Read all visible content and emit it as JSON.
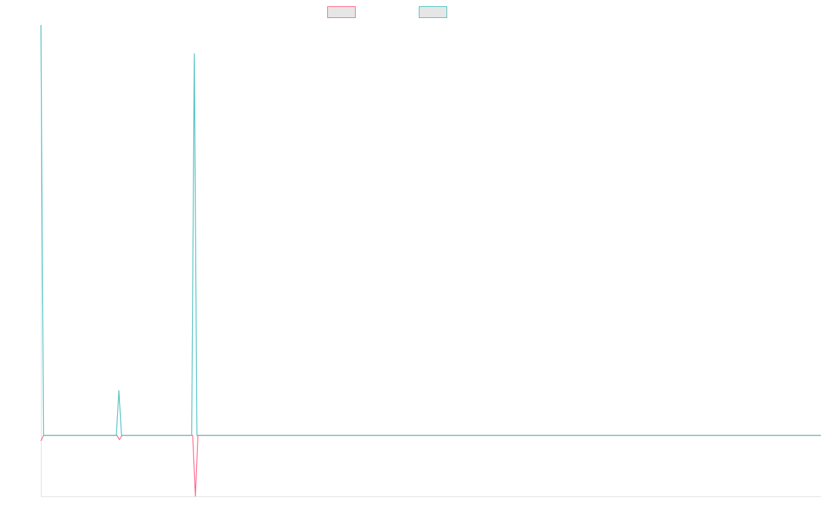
{
  "chart_data": {
    "type": "line",
    "ylim": [
      -88,
      592
    ],
    "series": [
      {
        "color": "#ff6384",
        "values": [
          -8,
          0,
          0,
          0,
          0,
          0,
          0,
          0,
          0,
          0,
          0,
          0,
          0,
          0,
          0,
          0,
          0,
          0,
          0,
          0,
          0,
          0,
          0,
          0,
          0,
          0,
          0,
          0,
          0,
          0,
          -6,
          0,
          0,
          0,
          0,
          0,
          0,
          0,
          0,
          0,
          0,
          0,
          0,
          0,
          0,
          0,
          0,
          0,
          0,
          0,
          0,
          0,
          0,
          0,
          0,
          0,
          0,
          0,
          0,
          -88,
          0,
          0,
          0,
          0,
          0,
          0,
          0,
          0,
          0,
          0,
          0,
          0,
          0,
          0,
          0,
          0,
          0,
          0,
          0,
          0,
          0,
          0,
          0,
          0,
          0,
          0,
          0,
          0,
          0,
          0,
          0,
          0,
          0,
          0,
          0,
          0,
          0,
          0,
          0,
          0,
          0,
          0,
          0,
          0,
          0,
          0,
          0,
          0,
          0,
          0,
          0,
          0,
          0,
          0,
          0,
          0,
          0,
          0,
          0,
          0,
          0,
          0,
          0,
          0,
          0,
          0,
          0,
          0,
          0,
          0,
          0,
          0,
          0,
          0,
          0,
          0,
          0,
          0,
          0,
          0,
          0,
          0,
          0,
          0,
          0,
          0,
          0,
          0,
          0,
          0,
          0,
          0,
          0,
          0,
          0,
          0,
          0,
          0,
          0,
          0,
          0,
          0,
          0,
          0,
          0,
          0,
          0,
          0,
          0,
          0,
          0,
          0,
          0,
          0,
          0,
          0,
          0,
          0,
          0,
          0,
          0,
          0,
          0,
          0,
          0,
          0,
          0,
          0,
          0,
          0,
          0,
          0,
          0,
          0,
          0,
          0,
          0,
          0,
          0,
          0,
          0,
          0,
          0,
          0,
          0,
          0,
          0,
          0,
          0,
          0,
          0,
          0,
          0,
          0,
          0,
          0,
          0,
          0,
          0,
          0,
          0,
          0,
          0,
          0,
          0,
          0,
          0,
          0,
          0,
          0,
          0,
          0,
          0,
          0,
          0,
          0,
          0,
          0,
          0,
          0,
          0,
          0,
          0,
          0,
          0,
          0,
          0,
          0,
          0,
          0,
          0,
          0,
          0,
          0,
          0,
          0,
          0,
          0,
          0,
          0,
          0,
          0,
          0,
          0,
          0,
          0,
          0,
          0,
          0,
          0,
          0,
          0,
          0,
          0,
          0,
          0,
          0,
          0,
          0,
          0,
          0,
          0,
          0,
          0,
          0,
          0,
          0,
          0,
          0,
          0,
          0,
          0,
          0,
          0,
          0,
          0,
          0,
          0,
          0
        ]
      },
      {
        "color": "#4bc0c0",
        "values": [
          592,
          0,
          0,
          0,
          0,
          0,
          0,
          0,
          0,
          0,
          0,
          0,
          0,
          0,
          0,
          0,
          0,
          0,
          0,
          0,
          0,
          0,
          0,
          0,
          0,
          0,
          0,
          0,
          0,
          0,
          65,
          0,
          0,
          0,
          0,
          0,
          0,
          0,
          0,
          0,
          0,
          0,
          0,
          0,
          0,
          0,
          0,
          0,
          0,
          0,
          0,
          0,
          0,
          0,
          0,
          0,
          0,
          0,
          0,
          551,
          0,
          0,
          0,
          0,
          0,
          0,
          0,
          0,
          0,
          0,
          0,
          0,
          0,
          0,
          0,
          0,
          0,
          0,
          0,
          0,
          0,
          0,
          0,
          0,
          0,
          0,
          0,
          0,
          0,
          0,
          0,
          0,
          0,
          0,
          0,
          0,
          0,
          0,
          0,
          0,
          0,
          0,
          0,
          0,
          0,
          0,
          0,
          0,
          0,
          0,
          0,
          0,
          0,
          0,
          0,
          0,
          0,
          0,
          0,
          0,
          0,
          0,
          0,
          0,
          0,
          0,
          0,
          0,
          0,
          0,
          0,
          0,
          0,
          0,
          0,
          0,
          0,
          0,
          0,
          0,
          0,
          0,
          0,
          0,
          0,
          0,
          0,
          0,
          0,
          0,
          0,
          0,
          0,
          0,
          0,
          0,
          0,
          0,
          0,
          0,
          0,
          0,
          0,
          0,
          0,
          0,
          0,
          0,
          0,
          0,
          0,
          0,
          0,
          0,
          0,
          0,
          0,
          0,
          0,
          0,
          0,
          0,
          0,
          0,
          0,
          0,
          0,
          0,
          0,
          0,
          0,
          0,
          0,
          0,
          0,
          0,
          0,
          0,
          0,
          0,
          0,
          0,
          0,
          0,
          0,
          0,
          0,
          0,
          0,
          0,
          0,
          0,
          0,
          0,
          0,
          0,
          0,
          0,
          0,
          0,
          0,
          0,
          0,
          0,
          0,
          0,
          0,
          0,
          0,
          0,
          0,
          0,
          0,
          0,
          0,
          0,
          0,
          0,
          0,
          0,
          0,
          0,
          0,
          0,
          0,
          0,
          0,
          0,
          0,
          0,
          0,
          0,
          0,
          0,
          0,
          0,
          0,
          0,
          0,
          0,
          0,
          0,
          0,
          0,
          0,
          0,
          0,
          0,
          0,
          0,
          0,
          0,
          0,
          0,
          0,
          0,
          0,
          0,
          0,
          0,
          0,
          0,
          0,
          0,
          0,
          0,
          0,
          0,
          0,
          0,
          0,
          0,
          0,
          0,
          0,
          0,
          0,
          0,
          0,
          0,
          0
        ]
      }
    ]
  }
}
